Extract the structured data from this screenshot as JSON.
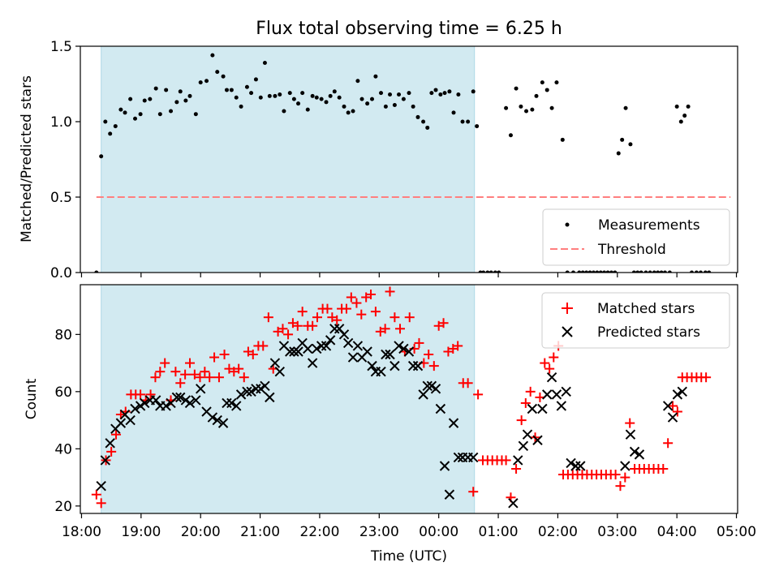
{
  "chart_data": {
    "type": "scatter",
    "title": "Flux total observing time = 6.25 h",
    "xlabel": "Time (UTC)",
    "x_unit": "hours since 18:00 UTC",
    "xlim": [
      -0.02,
      11.02
    ],
    "x_ticks": [
      0,
      1,
      2,
      3,
      4,
      5,
      6,
      7,
      8,
      9,
      10,
      11
    ],
    "x_tick_labels": [
      "18:00",
      "19:00",
      "20:00",
      "21:00",
      "22:00",
      "23:00",
      "00:00",
      "01:00",
      "02:00",
      "03:00",
      "04:00",
      "05:00"
    ],
    "observing_span": [
      0.33,
      6.6
    ],
    "colors": {
      "shade": "#add8e6",
      "measurement": "#000000",
      "threshold": "#ff7f7f",
      "matched": "#ff0000",
      "predicted": "#000000"
    },
    "top_panel": {
      "ylabel": "Matched/Predicted stars",
      "ylim": [
        0,
        1.5
      ],
      "y_ticks": [
        0.0,
        0.5,
        1.0,
        1.5
      ],
      "y_tick_labels": [
        "0.0",
        "0.5",
        "1.0",
        "1.5"
      ],
      "legend": [
        "Measurements",
        "Threshold"
      ],
      "legend_loc": "lower-right",
      "threshold": {
        "value": 0.5,
        "x_range": [
          0.25,
          10.9
        ]
      },
      "measurements": {
        "x": [
          0.25,
          0.33,
          0.4,
          0.48,
          0.57,
          0.66,
          0.73,
          0.82,
          0.9,
          0.99,
          1.06,
          1.15,
          1.25,
          1.32,
          1.42,
          1.5,
          1.6,
          1.66,
          1.75,
          1.82,
          1.92,
          2.0,
          2.1,
          2.2,
          2.28,
          2.38,
          2.44,
          2.52,
          2.6,
          2.68,
          2.78,
          2.85,
          2.93,
          3.01,
          3.08,
          3.16,
          3.25,
          3.33,
          3.4,
          3.5,
          3.57,
          3.64,
          3.71,
          3.8,
          3.88,
          3.95,
          4.03,
          4.11,
          4.18,
          4.25,
          4.33,
          4.41,
          4.48,
          4.56,
          4.64,
          4.71,
          4.8,
          4.88,
          4.94,
          5.03,
          5.11,
          5.18,
          5.26,
          5.33,
          5.41,
          5.5,
          5.57,
          5.65,
          5.74,
          5.81,
          5.88,
          5.95,
          6.03,
          6.1,
          6.18,
          6.25,
          6.33,
          6.4,
          6.49,
          6.58,
          6.64,
          6.7,
          6.75,
          6.82,
          6.88,
          6.95,
          7.01,
          7.13,
          7.21,
          7.3,
          7.38,
          7.47,
          7.57,
          7.64,
          7.74,
          7.82,
          7.9,
          7.98,
          8.08,
          8.16,
          8.26,
          8.36,
          8.42,
          8.48,
          8.54,
          8.6,
          8.66,
          8.72,
          8.78,
          8.84,
          8.9,
          8.96,
          9.02,
          9.08,
          9.14,
          9.22,
          9.28,
          9.34,
          9.4,
          9.48,
          9.55,
          9.62,
          9.68,
          9.74,
          9.8,
          9.88,
          10.0,
          10.07,
          10.13,
          10.19,
          10.25,
          10.33,
          10.4,
          10.48,
          10.54
        ],
        "y": [
          0.0,
          0.77,
          1.0,
          0.92,
          0.97,
          1.08,
          1.06,
          1.15,
          1.02,
          1.05,
          1.14,
          1.15,
          1.22,
          1.05,
          1.21,
          1.07,
          1.13,
          1.2,
          1.14,
          1.17,
          1.05,
          1.26,
          1.27,
          1.44,
          1.33,
          1.3,
          1.21,
          1.21,
          1.16,
          1.1,
          1.23,
          1.19,
          1.28,
          1.16,
          1.39,
          1.17,
          1.17,
          1.18,
          1.07,
          1.19,
          1.15,
          1.12,
          1.19,
          1.08,
          1.17,
          1.16,
          1.15,
          1.13,
          1.17,
          1.2,
          1.16,
          1.1,
          1.06,
          1.07,
          1.27,
          1.15,
          1.12,
          1.15,
          1.3,
          1.19,
          1.1,
          1.18,
          1.11,
          1.18,
          1.15,
          1.19,
          1.1,
          1.03,
          1.0,
          0.96,
          1.19,
          1.21,
          1.18,
          1.19,
          1.2,
          1.06,
          1.18,
          1.0,
          1.0,
          1.2,
          0.97,
          0.0,
          0.0,
          0.0,
          0.0,
          0.0,
          0.0,
          1.09,
          0.91,
          1.22,
          1.1,
          1.07,
          1.08,
          1.17,
          1.26,
          1.21,
          1.09,
          1.26,
          0.88,
          0.0,
          0.0,
          0.0,
          0.0,
          0.0,
          0.0,
          0.0,
          0.0,
          0.0,
          0.0,
          0.0,
          0.0,
          0.0,
          0.79,
          0.88,
          1.09,
          0.85,
          0.0,
          0.0,
          0.0,
          0.0,
          0.0,
          0.0,
          0.0,
          0.0,
          0.0,
          0.0,
          1.1,
          1.0,
          1.04,
          1.1,
          0.0,
          0.0,
          0.0,
          0.0,
          0.0
        ]
      }
    },
    "bottom_panel": {
      "ylabel": "Count",
      "ylim": [
        17.4,
        97.4
      ],
      "y_ticks": [
        20,
        40,
        60,
        80
      ],
      "y_tick_labels": [
        "20",
        "40",
        "60",
        "80"
      ],
      "legend": [
        "Matched stars",
        "Predicted stars"
      ],
      "legend_loc": "upper-right",
      "series": [
        {
          "name": "Matched stars",
          "marker": "plus",
          "x": [
            0.25,
            0.33,
            0.41,
            0.5,
            0.58,
            0.66,
            0.74,
            0.83,
            0.91,
            0.99,
            1.08,
            1.16,
            1.24,
            1.32,
            1.4,
            1.5,
            1.58,
            1.66,
            1.74,
            1.82,
            1.9,
            1.99,
            2.07,
            2.15,
            2.23,
            2.31,
            2.4,
            2.48,
            2.56,
            2.64,
            2.73,
            2.8,
            2.88,
            2.97,
            3.05,
            3.14,
            3.22,
            3.3,
            3.38,
            3.47,
            3.55,
            3.63,
            3.71,
            3.8,
            3.88,
            3.96,
            4.05,
            4.13,
            4.21,
            4.29,
            4.37,
            4.45,
            4.53,
            4.62,
            4.7,
            4.78,
            4.86,
            4.94,
            5.02,
            5.1,
            5.18,
            5.26,
            5.35,
            5.43,
            5.51,
            5.59,
            5.67,
            5.75,
            5.83,
            5.92,
            6.0,
            6.08,
            6.16,
            6.24,
            6.32,
            6.41,
            6.49,
            6.58,
            6.66,
            6.74,
            6.82,
            6.9,
            6.98,
            7.06,
            7.13,
            7.21,
            7.3,
            7.39,
            7.46,
            7.54,
            7.62,
            7.7,
            7.78,
            7.86,
            7.93,
            8.01,
            8.09,
            8.17,
            8.25,
            8.33,
            8.41,
            8.49,
            8.57,
            8.65,
            8.73,
            8.81,
            8.89,
            8.97,
            9.05,
            9.13,
            9.21,
            9.29,
            9.37,
            9.45,
            9.53,
            9.61,
            9.69,
            9.77,
            9.85,
            9.93,
            10.01,
            10.09,
            10.17,
            10.25,
            10.33,
            10.41,
            10.49
          ],
          "y": [
            24,
            21,
            36,
            39,
            45,
            52,
            53,
            59,
            59,
            59,
            57,
            59,
            65,
            67,
            70,
            57,
            67,
            63,
            66,
            70,
            66,
            65,
            67,
            65,
            72,
            65,
            73,
            68,
            67,
            68,
            65,
            74,
            73,
            76,
            76,
            86,
            68,
            81,
            82,
            80,
            84,
            83,
            88,
            83,
            83,
            86,
            89,
            89,
            86,
            85,
            89,
            89,
            93,
            91,
            87,
            93,
            94,
            88,
            81,
            82,
            95,
            86,
            82,
            74,
            86,
            75,
            77,
            70,
            73,
            69,
            83,
            84,
            74,
            75,
            76,
            63,
            63,
            25,
            59,
            36,
            36,
            36,
            36,
            36,
            36,
            23,
            33,
            50,
            56,
            60,
            44,
            58,
            70,
            68,
            72,
            76,
            31,
            31,
            31,
            31,
            31,
            31,
            31,
            31,
            31,
            31,
            31,
            31,
            27,
            30,
            49,
            33,
            33,
            33,
            33,
            33,
            33,
            33,
            42,
            55,
            53,
            65,
            65,
            65,
            65,
            65,
            65
          ]
        },
        {
          "name": "Predicted stars",
          "marker": "x",
          "x": [
            0.33,
            0.4,
            0.48,
            0.57,
            0.66,
            0.73,
            0.82,
            0.9,
            0.99,
            1.06,
            1.15,
            1.25,
            1.32,
            1.42,
            1.5,
            1.6,
            1.66,
            1.75,
            1.82,
            1.92,
            2.0,
            2.1,
            2.2,
            2.28,
            2.38,
            2.44,
            2.52,
            2.6,
            2.68,
            2.78,
            2.85,
            2.93,
            3.01,
            3.08,
            3.16,
            3.25,
            3.33,
            3.4,
            3.5,
            3.57,
            3.64,
            3.71,
            3.8,
            3.88,
            3.95,
            4.03,
            4.11,
            4.18,
            4.25,
            4.33,
            4.41,
            4.48,
            4.56,
            4.64,
            4.71,
            4.8,
            4.88,
            4.94,
            5.03,
            5.11,
            5.18,
            5.26,
            5.33,
            5.41,
            5.5,
            5.57,
            5.65,
            5.74,
            5.81,
            5.88,
            5.95,
            6.03,
            6.1,
            6.18,
            6.25,
            6.33,
            6.4,
            6.49,
            6.58,
            7.25,
            7.33,
            7.42,
            7.49,
            7.57,
            7.66,
            7.74,
            7.82,
            7.9,
            7.98,
            8.06,
            8.14,
            8.22,
            8.3,
            8.38,
            9.13,
            9.22,
            9.29,
            9.37,
            9.85,
            9.93,
            10.01,
            10.09
          ],
          "y": [
            27,
            36,
            42,
            47,
            49,
            52,
            50,
            54,
            55,
            56,
            57,
            57,
            55,
            55,
            56,
            58,
            58,
            57,
            56,
            57,
            61,
            53,
            51,
            50,
            49,
            56,
            56,
            55,
            59,
            60,
            60,
            61,
            61,
            62,
            58,
            70,
            67,
            76,
            74,
            74,
            74,
            77,
            75,
            70,
            75,
            76,
            76,
            78,
            82,
            82,
            80,
            77,
            72,
            76,
            72,
            74,
            69,
            67,
            67,
            73,
            73,
            69,
            76,
            75,
            74,
            69,
            69,
            59,
            62,
            62,
            61,
            54,
            34,
            24,
            49,
            37,
            37,
            37,
            37,
            21,
            36,
            41,
            45,
            54,
            43,
            54,
            59,
            65,
            59,
            55,
            60,
            35,
            34,
            34,
            34,
            45,
            39,
            38,
            55,
            51,
            59,
            60
          ]
        }
      ]
    }
  }
}
